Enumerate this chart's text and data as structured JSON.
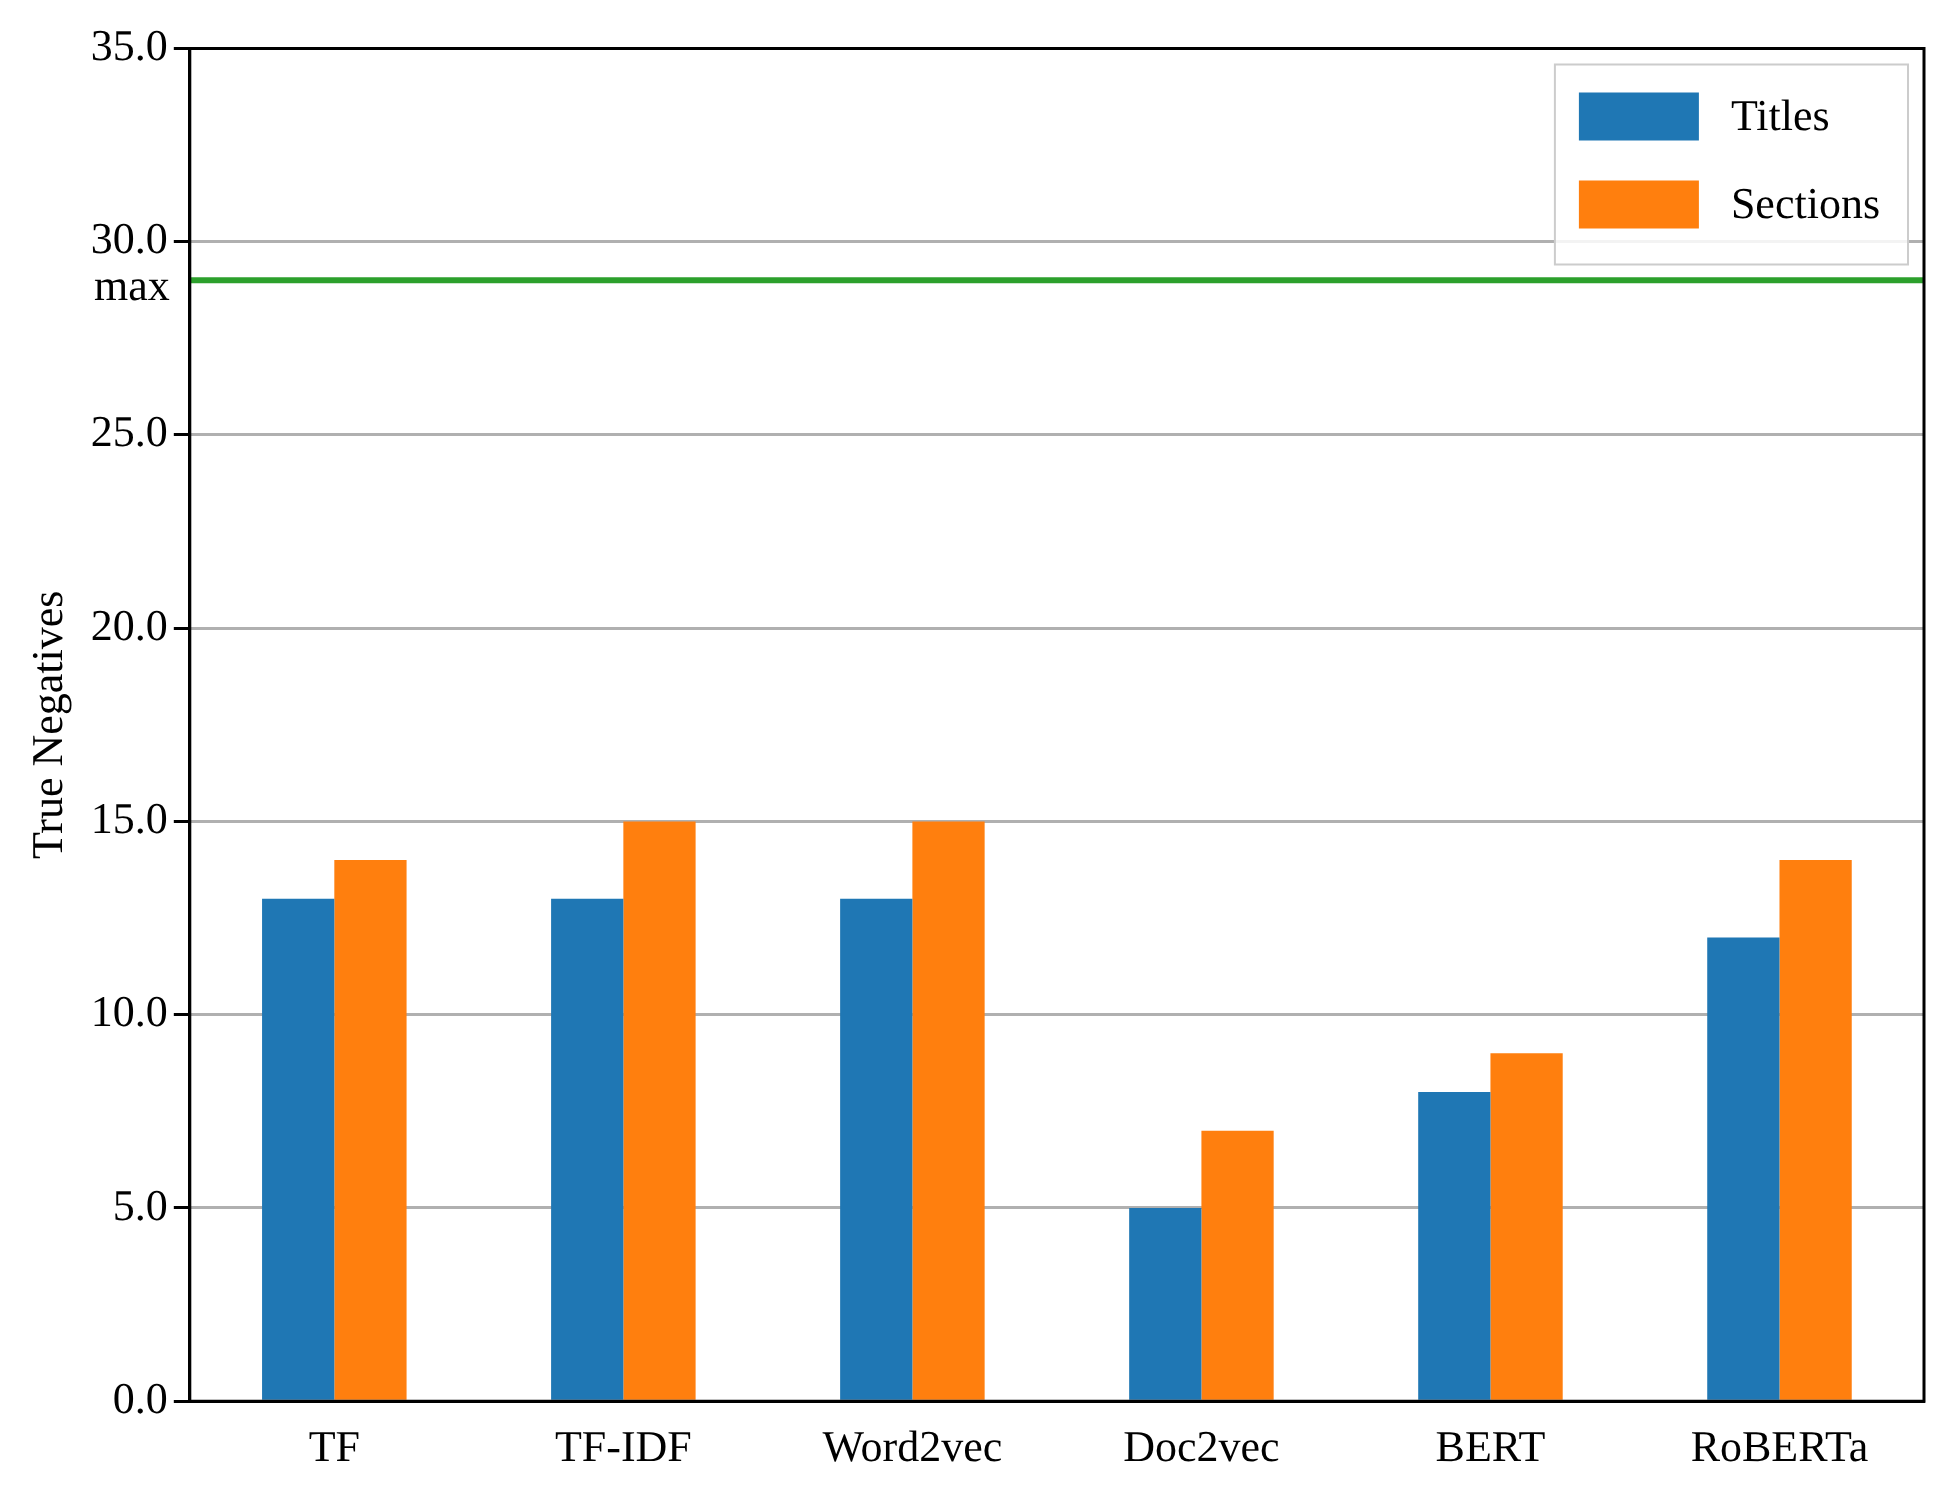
{
  "chart_data": {
    "type": "bar",
    "ylabel": "True Negatives",
    "categories": [
      "TF",
      "TF-IDF",
      "Word2vec",
      "Doc2vec",
      "BERT",
      "RoBERTa"
    ],
    "series": [
      {
        "name": "Titles",
        "color": "#1f77b4",
        "values": [
          13,
          13,
          13,
          5,
          8,
          12
        ]
      },
      {
        "name": "Sections",
        "color": "#ff7f0e",
        "values": [
          14,
          15,
          15,
          7,
          9,
          14
        ]
      }
    ],
    "ylim": [
      0,
      35
    ],
    "yticks": [
      {
        "value": 0,
        "label": "0.0"
      },
      {
        "value": 5,
        "label": "5.0"
      },
      {
        "value": 10,
        "label": "10.0"
      },
      {
        "value": 15,
        "label": "15.0"
      },
      {
        "value": 20,
        "label": "20.0"
      },
      {
        "value": 25,
        "label": "25.0"
      },
      {
        "value": 30,
        "label": "30.0"
      },
      {
        "value": 35,
        "label": "35.0"
      }
    ],
    "ref_lines": [
      {
        "axis": "y",
        "value": 29,
        "label": "max",
        "color": "#2ca02c"
      }
    ],
    "grid": "y",
    "legend": "top right"
  }
}
